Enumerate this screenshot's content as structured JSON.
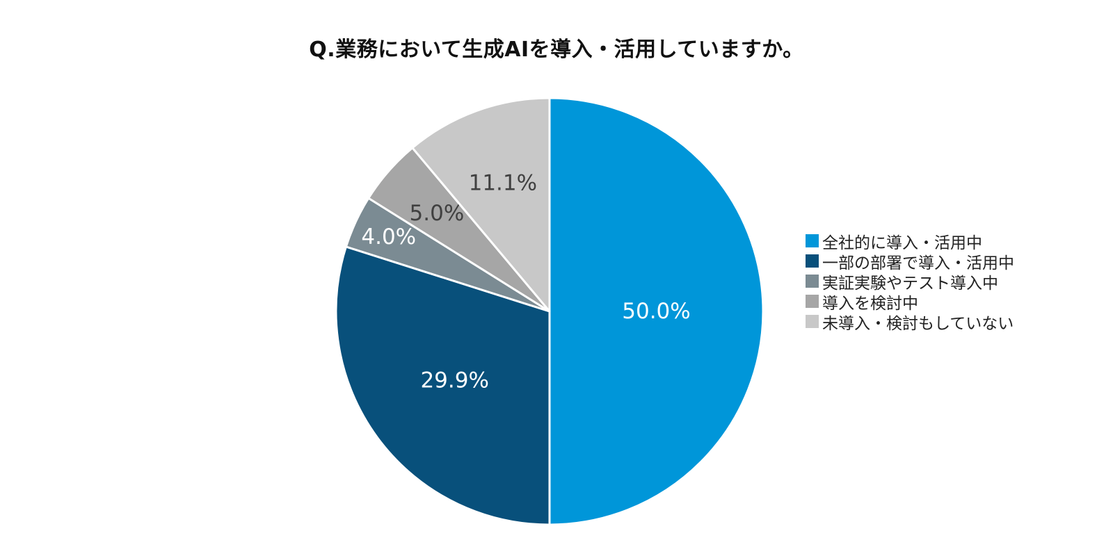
{
  "chart_data": {
    "type": "pie",
    "title": "Q.業務において生成AIを導入・活用していますか。",
    "categories": [
      "全社的に導入・活用中",
      "一部の部署で導入・活用中",
      "実証実験やテスト導入中",
      "導入を検討中",
      "未導入・検討もしていない"
    ],
    "values": [
      50.0,
      29.9,
      4.0,
      5.0,
      11.1
    ],
    "data_labels": [
      "50.0%",
      "29.9%",
      "4.0%",
      "5.0%",
      "11.1%"
    ],
    "colors": [
      "#0096d9",
      "#08507b",
      "#7b8b93",
      "#a6a6a6",
      "#c8c8c8"
    ],
    "label_colors": [
      "#ffffff",
      "#ffffff",
      "#ffffff",
      "#404040",
      "#404040"
    ],
    "start_angle": "12 o'clock",
    "direction": "clockwise",
    "legend_placement": "right"
  }
}
